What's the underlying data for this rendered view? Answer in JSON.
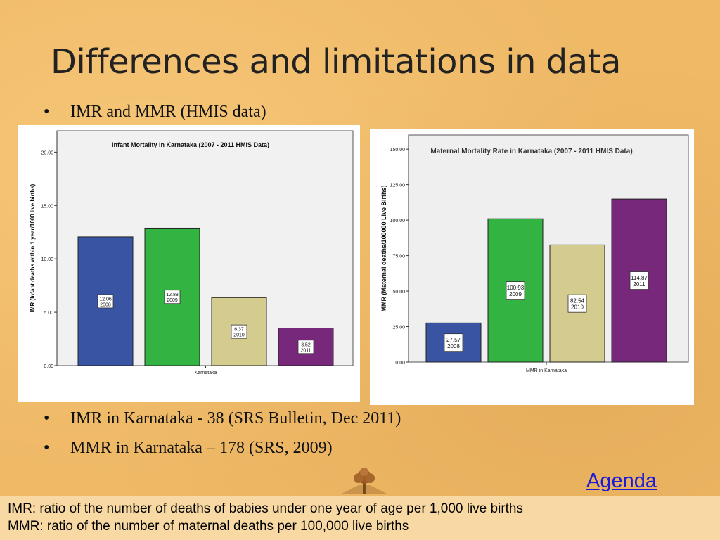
{
  "slide": {
    "title": "Differences and limitations in data",
    "bullets_top": [
      "IMR and MMR (HMIS data)"
    ],
    "bullets_bottom": [
      "IMR in Karnataka  - 38 (SRS Bulletin, Dec 2011)",
      "MMR in Karnataka – 178 (SRS, 2009)"
    ],
    "agenda_link": "Agenda",
    "footnotes": [
      "IMR: ratio of the number of deaths of babies under one year of age per 1,000 live births",
      "MMR: ratio of the number of maternal deaths per 100,000 live births"
    ],
    "bullet_glyph": "•",
    "logo_icon": "tree-logo-icon",
    "colors": {
      "background": "#efb966",
      "footnote_bg": "#f8d9a3",
      "link": "#1b1bd8"
    }
  },
  "chart_data": [
    {
      "type": "bar",
      "title": "Infant Mortality in Karnataka (2007 - 2011 HMIS Data)",
      "xlabel": "Karnataka",
      "ylabel": "IMR (Infant deaths within 1 year/1000 live births)",
      "ylim": [
        0,
        22
      ],
      "yticks": [
        "0.00",
        "5.00",
        "10.00",
        "15.00",
        "20.00"
      ],
      "ytick_values": [
        0,
        5,
        10,
        15,
        20
      ],
      "categories": [
        "2008",
        "2009",
        "2010",
        "2011"
      ],
      "values": [
        12.06,
        12.88,
        6.37,
        3.52
      ],
      "labels": [
        [
          "12.06",
          "2008"
        ],
        [
          "12.88",
          "2009"
        ],
        [
          "6.37",
          "2010"
        ],
        [
          "3.52",
          "2011"
        ]
      ],
      "colors": [
        "#3a54a4",
        "#33b341",
        "#d3cc8e",
        "#78287a"
      ],
      "grid": false,
      "legend": "none"
    },
    {
      "type": "bar",
      "title": "Maternal Mortality Rate in Karnataka (2007 - 2011 HMIS Data)",
      "xlabel": "MMR in Karnataka",
      "ylabel": "MMR (Maternal deaths/100000 Live Births)",
      "ylim": [
        0,
        160
      ],
      "yticks": [
        "0.00",
        "25.00",
        "50.00",
        "75.00",
        "100.00",
        "125.00",
        "150.00"
      ],
      "ytick_values": [
        0,
        25,
        50,
        75,
        100,
        125,
        150
      ],
      "categories": [
        "2008",
        "2009",
        "2010",
        "2011"
      ],
      "values": [
        27.57,
        100.93,
        82.54,
        114.87
      ],
      "labels": [
        [
          "27.57",
          "2008"
        ],
        [
          "100.93",
          "2009"
        ],
        [
          "82.54",
          "2010"
        ],
        [
          "114.87",
          "2011"
        ]
      ],
      "colors": [
        "#3a54a4",
        "#33b341",
        "#d3cc8e",
        "#78287a"
      ],
      "grid": false,
      "legend": "none"
    }
  ]
}
